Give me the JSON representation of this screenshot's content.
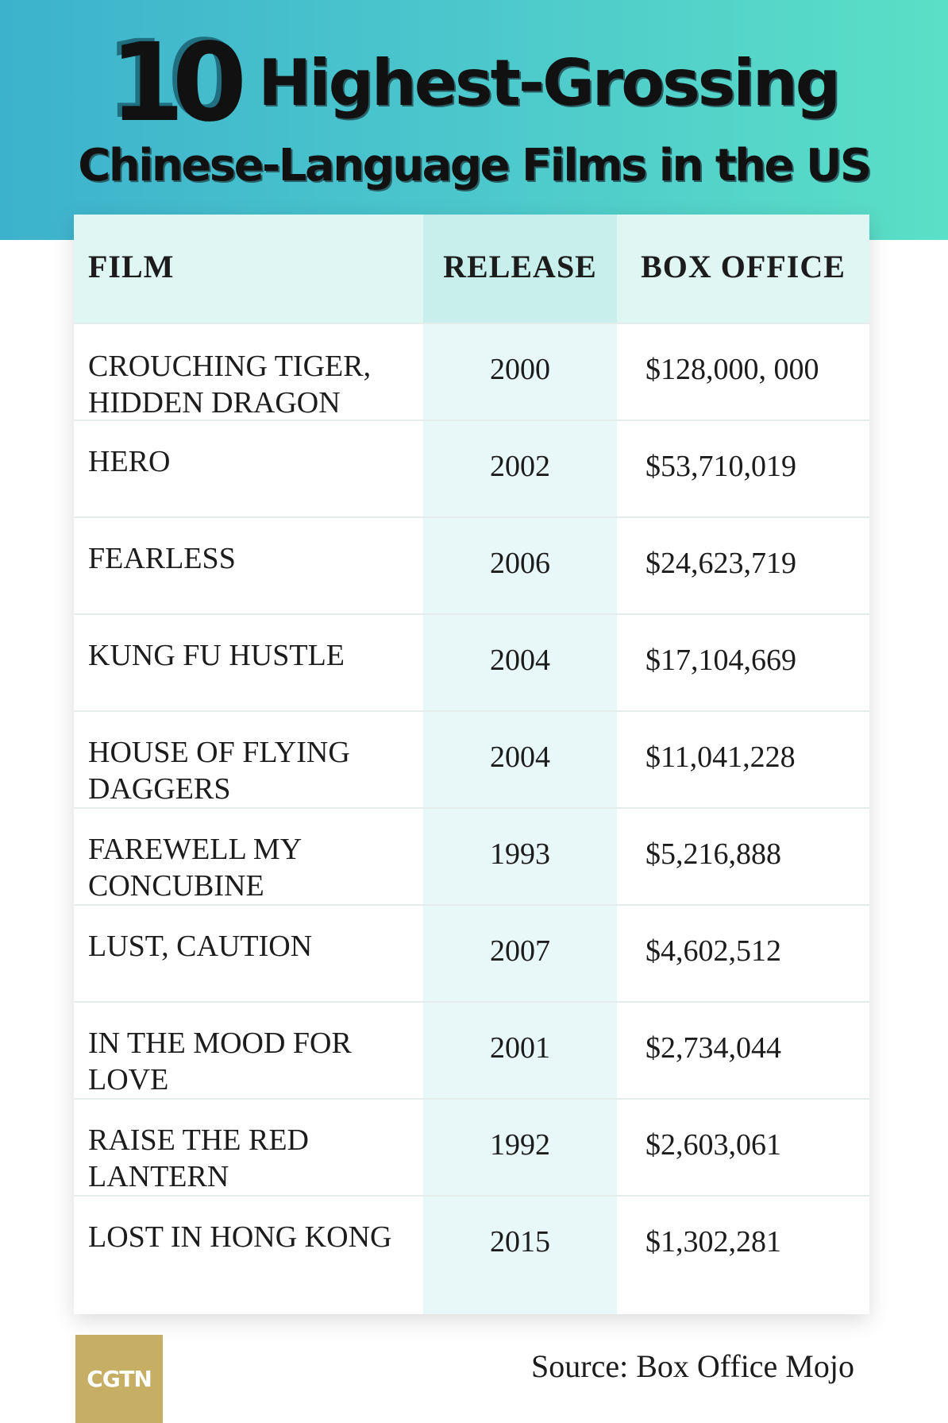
{
  "title": {
    "number": "10",
    "line1": "Highest-Grossing",
    "line2": "Chinese-Language Films in the US"
  },
  "chart_data": {
    "type": "table",
    "title": "10 Highest-Grossing Chinese-Language Films in the US",
    "columns": [
      "FILM",
      "RELEASE",
      "BOX OFFICE"
    ],
    "rows": [
      {
        "film": "CROUCHING TIGER, HIDDEN DRAGON",
        "release": "2000",
        "box_office": "$128,000, 000"
      },
      {
        "film": "HERO",
        "release": "2002",
        "box_office": "$53,710,019"
      },
      {
        "film": "FEARLESS",
        "release": "2006",
        "box_office": "$24,623,719"
      },
      {
        "film": "KUNG FU HUSTLE",
        "release": "2004",
        "box_office": "$17,104,669"
      },
      {
        "film": "HOUSE OF FLYING DAGGERS",
        "release": "2004",
        "box_office": "$11,041,228"
      },
      {
        "film": "FAREWELL MY CONCUBINE",
        "release": "1993",
        "box_office": "$5,216,888"
      },
      {
        "film": "LUST, CAUTION",
        "release": "2007",
        "box_office": "$4,602,512"
      },
      {
        "film": "IN THE MOOD FOR LOVE",
        "release": "2001",
        "box_office": "$2,734,044"
      },
      {
        "film": "RAISE THE RED LANTERN",
        "release": "1992",
        "box_office": "$2,603,061"
      },
      {
        "film": "LOST IN HONG KONG",
        "release": "2015",
        "box_office": "$1,302,281"
      }
    ]
  },
  "logo": "CGTN",
  "source": "Source: Box Office Mojo",
  "colors": {
    "header_left": "#3db2cc",
    "header_right": "#5bdfc6",
    "logo": "#c7ae65"
  }
}
